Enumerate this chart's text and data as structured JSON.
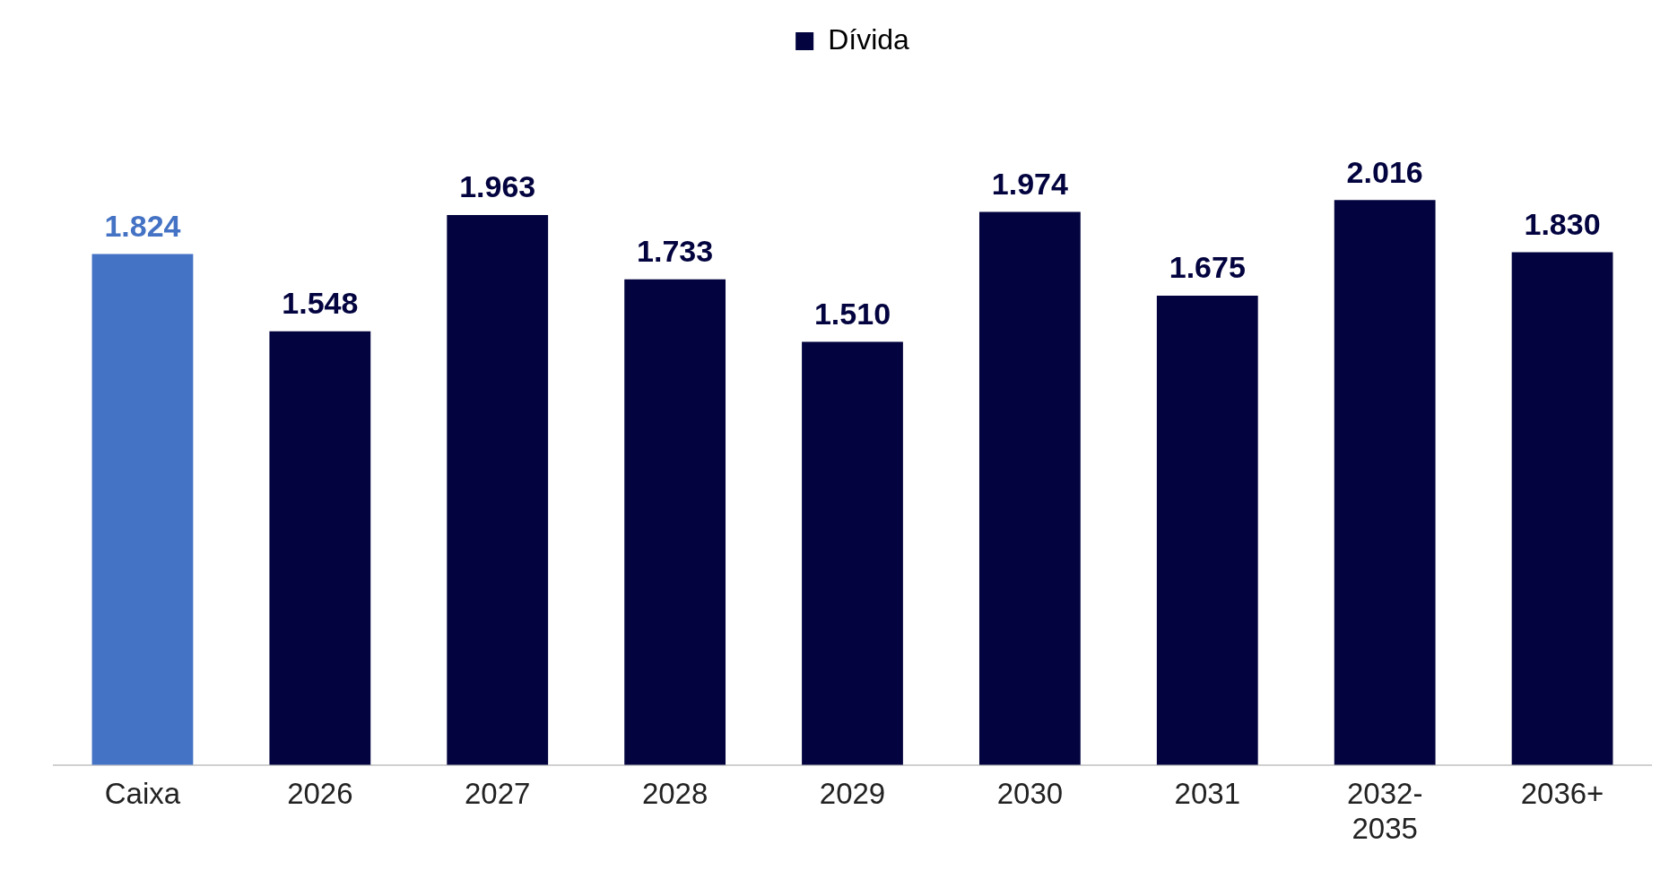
{
  "chart_data": {
    "type": "bar",
    "categories": [
      "Caixa",
      "2026",
      "2027",
      "2028",
      "2029",
      "2030",
      "2031",
      "2032-2035",
      "2036+"
    ],
    "series": [
      {
        "name": "Dívida",
        "color": "#03033f",
        "colors": [
          "#4472c4",
          "#03033f",
          "#03033f",
          "#03033f",
          "#03033f",
          "#03033f",
          "#03033f",
          "#03033f",
          "#03033f"
        ],
        "values": [
          1824,
          1548,
          1963,
          1733,
          1510,
          1974,
          1675,
          2016,
          1830
        ],
        "value_labels": [
          "1.824",
          "1.548",
          "1.963",
          "1.733",
          "1.510",
          "1.974",
          "1.675",
          "2.016",
          "1.830"
        ]
      }
    ],
    "legend": "top",
    "grid": false
  }
}
